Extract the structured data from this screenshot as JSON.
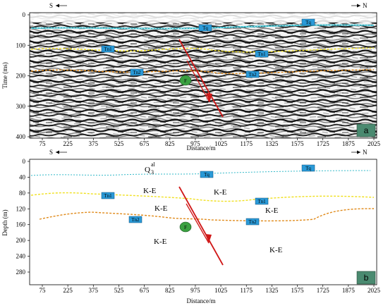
{
  "top": {
    "dir_left": "S",
    "dir_right": "N",
    "ylabel": "Time (ms)",
    "yticks": [
      "0",
      "100",
      "200",
      "300",
      "400"
    ],
    "xlabel": "Distance/m",
    "panel_label": "a"
  },
  "bottom": {
    "dir_left": "S",
    "dir_right": "N",
    "ylabel": "Depth (m)",
    "yticks": [
      "0",
      "40",
      "80",
      "120",
      "160",
      "200",
      "240",
      "280"
    ],
    "xlabel": "Distance/m",
    "panel_label": "b",
    "units": {
      "q_main": "Q",
      "q_sup": "al",
      "q_sub": "3",
      "ke": [
        "K-E",
        "K-E",
        "K-E",
        "K-E",
        "K-E",
        "K-E"
      ]
    }
  },
  "xticks": [
    "75",
    "225",
    "375",
    "525",
    "675",
    "825",
    "975",
    "1025",
    "1175",
    "1325",
    "1575",
    "1725",
    "1875",
    "2025"
  ],
  "horizon_tags": {
    "tq": "Tq",
    "tn1": "Tn1",
    "tn2": "Tn2",
    "f": "F"
  },
  "colors": {
    "q_horizon": "#30b8c8",
    "n1_horizon": "#f0e020",
    "n2_horizon": "#e08a1a",
    "fault": "#d01818",
    "tag_fill": "#2a9ad8",
    "fault_tag": "#3aa040",
    "panel_box": "#4a8a70"
  }
}
